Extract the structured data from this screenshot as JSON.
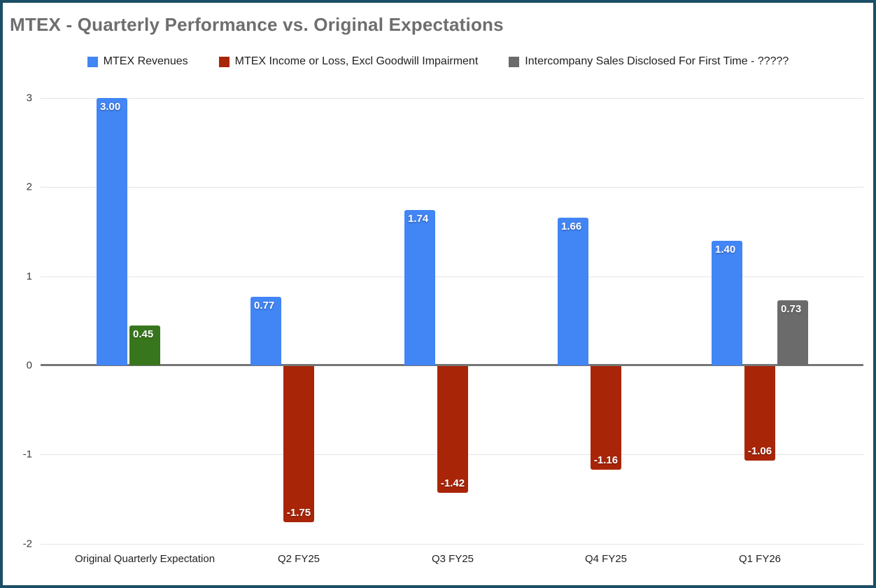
{
  "page": {
    "frame_border_color": "#1C4E66",
    "background": "#FFFFFF"
  },
  "chart_data": {
    "type": "bar",
    "title": "MTEX - Quarterly Performance vs. Original Expectations",
    "title_color": "#6E6E6E",
    "categories": [
      "Original Quarterly Expectation",
      "Q2 FY25",
      "Q3 FY25",
      "Q4 FY25",
      "Q1 FY26"
    ],
    "series": [
      {
        "name": "MTEX Revenues",
        "color": "#4285F4",
        "values": [
          3.0,
          0.77,
          1.74,
          1.66,
          1.4
        ]
      },
      {
        "name": "MTEX Income or Loss, Excl Goodwill Impairment",
        "color": "#A92508",
        "values": [
          0.45,
          -1.75,
          -1.42,
          -1.16,
          -1.06
        ],
        "point_colors": [
          "#38761D",
          null,
          null,
          null,
          null
        ]
      },
      {
        "name": "Intercompany Sales Disclosed For First Time - ?????",
        "color": "#6B6B6B",
        "values": [
          null,
          null,
          null,
          null,
          0.73
        ]
      }
    ],
    "data_labels": {
      "visible": true,
      "decimals": 2,
      "color": "#FFFFFF"
    },
    "ylim": [
      -2,
      3
    ],
    "yticks": [
      3,
      2,
      1,
      0,
      -1,
      -2
    ],
    "grid": true,
    "zero_line_color": "#757575",
    "gridline_color": "#E4E4E4",
    "legend_position": "top"
  }
}
